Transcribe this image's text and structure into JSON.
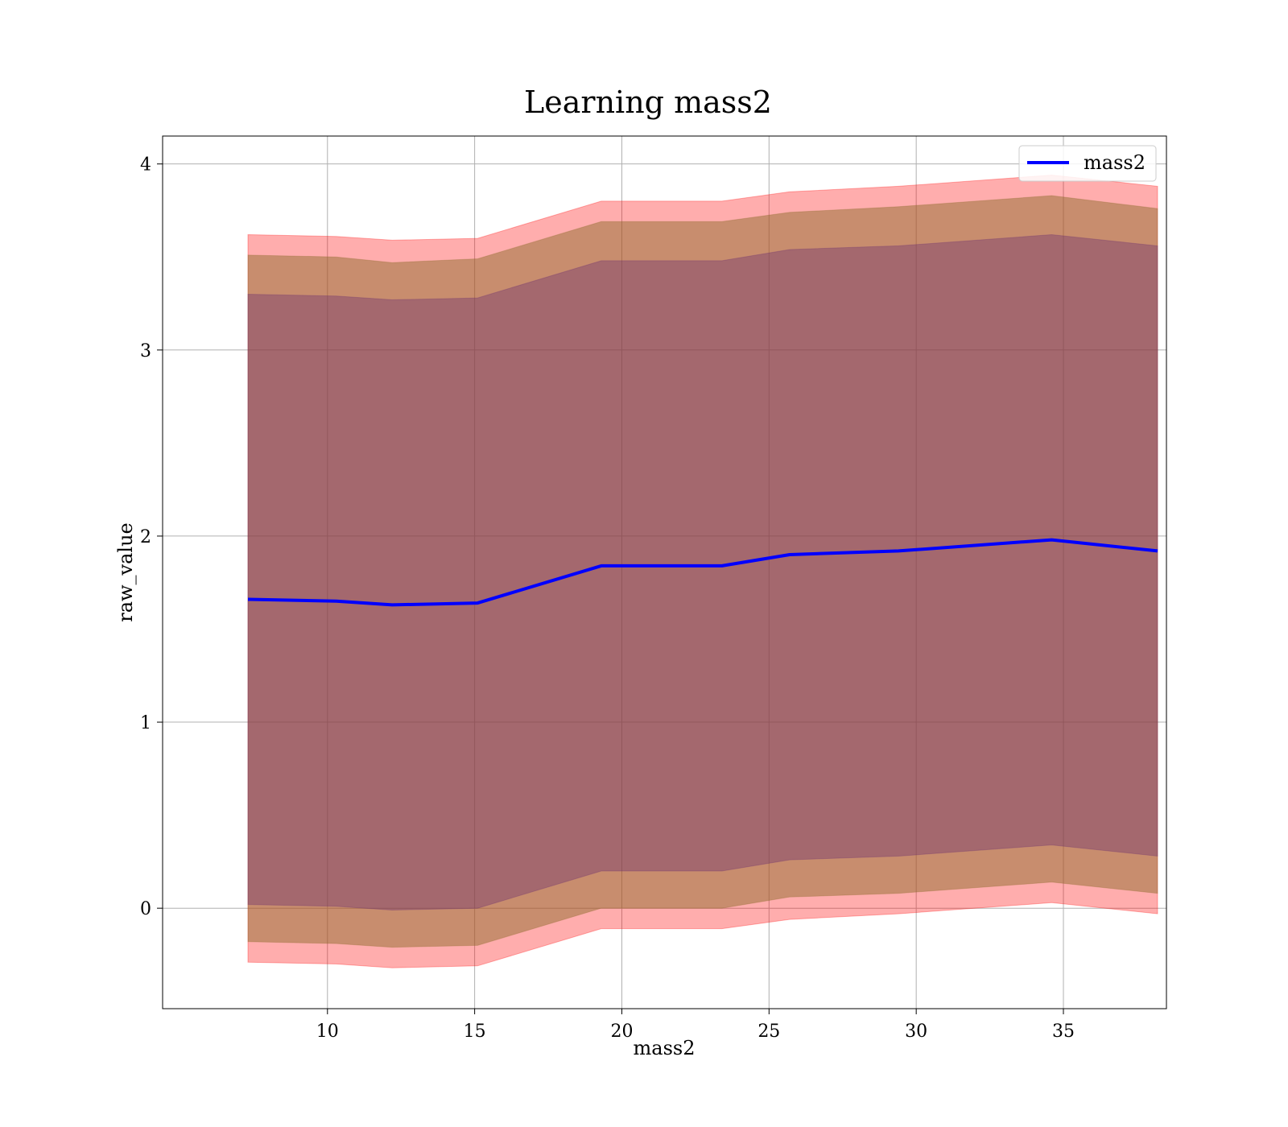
{
  "chart_data": {
    "type": "line",
    "title": "Learning mass2",
    "xlabel": "mass2",
    "ylabel": "raw_value",
    "xlim": [
      4.4,
      38.5
    ],
    "ylim": [
      -0.54,
      4.15
    ],
    "xticks": [
      10,
      15,
      20,
      25,
      30,
      35
    ],
    "yticks": [
      0,
      1,
      2,
      3,
      4
    ],
    "grid": true,
    "legend_position": "top-right",
    "series": [
      {
        "name": "mass2",
        "color": "#0000ff",
        "x": [
          7.3,
          10.3,
          12.2,
          15.1,
          19.3,
          23.4,
          25.7,
          29.4,
          34.6,
          38.2
        ],
        "y": [
          1.66,
          1.65,
          1.63,
          1.64,
          1.84,
          1.84,
          1.9,
          1.92,
          1.98,
          1.92
        ]
      }
    ],
    "bands": [
      {
        "color": "#ff0000",
        "opacity": 0.32,
        "lower": [
          -0.29,
          -0.3,
          -0.32,
          -0.31,
          -0.11,
          -0.11,
          -0.06,
          -0.03,
          0.03,
          -0.03
        ],
        "upper": [
          3.62,
          3.61,
          3.59,
          3.6,
          3.8,
          3.8,
          3.85,
          3.88,
          3.94,
          3.88
        ]
      },
      {
        "color": "#8b6a2a",
        "opacity": 0.48,
        "lower": [
          -0.18,
          -0.19,
          -0.21,
          -0.2,
          0.0,
          0.0,
          0.06,
          0.08,
          0.14,
          0.08
        ],
        "upper": [
          3.51,
          3.5,
          3.47,
          3.49,
          3.69,
          3.69,
          3.74,
          3.77,
          3.83,
          3.76
        ]
      },
      {
        "color": "#6a2e6f",
        "opacity": 0.38,
        "lower": [
          0.02,
          0.01,
          -0.01,
          0.0,
          0.2,
          0.2,
          0.26,
          0.28,
          0.34,
          0.28
        ],
        "upper": [
          3.3,
          3.29,
          3.27,
          3.28,
          3.48,
          3.48,
          3.54,
          3.56,
          3.62,
          3.56
        ]
      }
    ]
  }
}
